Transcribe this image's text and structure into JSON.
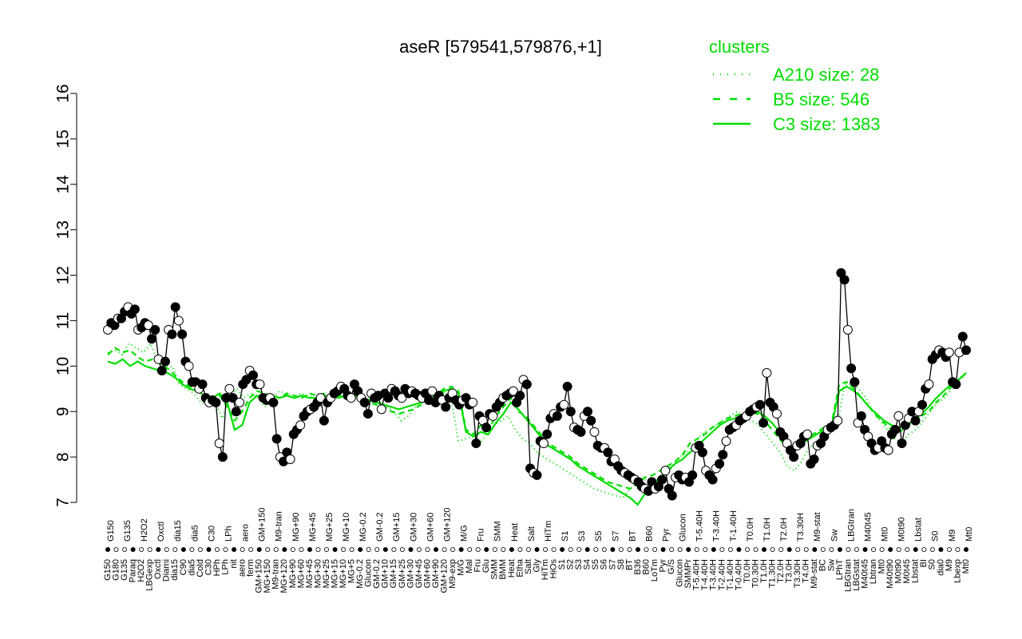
{
  "chart_data": {
    "type": "line",
    "title": "aseR [579541,579876,+1]",
    "xlabel": "",
    "ylabel": "",
    "ylim": [
      7,
      16
    ],
    "yticks": [
      7,
      8,
      9,
      10,
      11,
      12,
      13,
      14,
      15,
      16
    ],
    "grid": false,
    "legend_position": "top-right",
    "legend": {
      "title": "clusters",
      "color": "#00dd00",
      "entries": [
        {
          "label": "A210 size: 28",
          "style": "dotted"
        },
        {
          "label": "B5 size: 546",
          "style": "dashed"
        },
        {
          "label": "C3 size: 1383",
          "style": "solid"
        }
      ]
    },
    "x_tick_labels": [
      "G150",
      "G180",
      "G135",
      "Paraq",
      "H2O2",
      "LBGexp",
      "Oxctl",
      "Diami",
      "dia15",
      "C90",
      "dia5",
      "Cold",
      "C30",
      "HPh",
      "LPh",
      "nit",
      "aero",
      "ferm",
      "GM+150",
      "MG+150",
      "M9-tran",
      "MG+120",
      "MG+90",
      "MG+60",
      "MG+45",
      "MG+30",
      "MG+25",
      "MG+15",
      "MG+10",
      "MG+5",
      "MG-0.2",
      "Glucon",
      "GM-0.2",
      "GM+10",
      "GM+15",
      "GM+25",
      "GM+30",
      "GM+45",
      "GM+60",
      "GM+90",
      "GM+120",
      "M9-exp",
      "M/G",
      "Mal",
      "Fru",
      "Glu",
      "SMM",
      "BMM",
      "Heat",
      "Etha",
      "Salt",
      "Gly",
      "HiTm",
      "HiOs",
      "S1",
      "S2",
      "S3",
      "S4",
      "S5",
      "S6",
      "S7",
      "S8",
      "BT",
      "B36",
      "B60",
      "LoTm",
      "Pyr",
      "G/S",
      "Glucon",
      "SMMPr",
      "T-5.40H",
      "T-4.40H",
      "T-3.40H",
      "T-2.40H",
      "T-1.40H",
      "T-0.40H",
      "T0.0H",
      "T0.30H",
      "T1.0H",
      "T1.30H",
      "T2.0H",
      "T3.0H",
      "T3.30H",
      "T4.0H",
      "M9-stat",
      "BC",
      "Sw",
      "LPhT",
      "LBGtran",
      "LBGstat",
      "M40t45",
      "Lbtran",
      "Mt0",
      "M40t90",
      "M0t90",
      "M0t45",
      "Lbstat",
      "BI",
      "S0",
      "dia0",
      "M9",
      "Lbexp",
      "Mt0"
    ],
    "series": [
      {
        "name": "",
        "style": "points-line",
        "values": [
          10.8,
          10.95,
          10.9,
          11.05,
          11.05,
          11.2,
          11.3,
          11.15,
          11.25,
          10.8,
          10.85,
          10.95,
          10.9,
          10.6,
          10.8,
          10.15,
          9.9,
          10.1,
          10.8,
          10.7,
          11.3,
          11.0,
          10.7,
          10.1,
          10.0,
          9.65,
          9.65,
          9.5,
          9.6,
          9.3,
          9.2,
          9.25,
          9.2,
          8.3,
          8.0,
          9.3,
          9.5,
          9.3,
          9.0,
          9.2,
          9.6,
          9.7,
          9.9,
          9.8,
          9.6,
          9.6,
          9.3,
          9.25,
          9.3,
          9.2,
          8.4,
          8.0,
          7.9,
          8.1,
          7.95,
          8.5,
          8.6,
          8.7,
          8.9,
          9.0,
          9.05,
          9.1,
          9.2,
          9.3,
          8.8,
          9.2,
          9.3,
          9.4,
          9.45,
          9.55,
          9.5,
          9.35,
          9.3,
          9.6,
          9.45,
          9.3,
          9.2,
          8.95,
          9.4,
          9.3,
          9.35,
          9.05,
          9.4,
          9.3,
          9.5,
          9.45,
          9.35,
          9.3,
          9.5,
          9.4,
          9.45,
          9.4,
          9.35,
          9.3,
          9.4,
          9.25,
          9.45,
          9.2,
          9.35,
          9.25,
          9.1,
          9.3,
          9.4,
          9.25,
          9.15,
          9.25,
          9.3,
          9.15,
          9.2,
          8.3,
          8.9,
          8.8,
          8.65,
          8.95,
          8.9,
          9.1,
          9.2,
          9.3,
          9.35,
          9.4,
          9.45,
          9.2,
          9.35,
          9.7,
          9.6,
          7.75,
          7.65,
          7.6,
          8.35,
          8.3,
          8.5,
          8.85,
          8.95,
          8.9,
          9.1,
          9.15,
          9.55,
          9.0,
          8.65,
          8.6,
          8.55,
          8.9,
          9.0,
          8.8,
          8.55,
          8.25,
          8.2,
          8.2,
          8.1,
          7.9,
          7.95,
          7.8,
          7.7,
          7.65,
          7.6,
          7.55,
          7.5,
          7.45,
          7.35,
          7.3,
          7.25,
          7.45,
          7.3,
          7.35,
          7.5,
          7.7,
          7.3,
          7.15,
          7.55,
          7.6,
          7.5,
          7.55,
          7.45,
          7.6,
          8.2,
          8.25,
          8.1,
          7.7,
          7.6,
          7.5,
          7.75,
          7.85,
          8.05,
          8.35,
          8.6,
          8.65,
          8.7,
          8.8,
          8.85,
          8.9,
          9.0,
          9.05,
          9.1,
          9.15,
          8.75,
          9.85,
          9.2,
          9.1,
          8.95,
          8.55,
          8.45,
          8.3,
          8.15,
          8.0,
          8.25,
          8.3,
          8.45,
          8.5,
          7.85,
          7.95,
          8.25,
          8.3,
          8.45,
          8.6,
          8.65,
          8.7,
          8.8,
          12.05,
          11.9,
          10.8,
          9.95,
          9.65,
          8.75,
          8.9,
          8.6,
          8.45,
          8.3,
          8.15,
          8.2,
          8.35,
          8.2,
          8.15,
          8.5,
          8.6,
          8.9,
          8.3,
          8.7,
          8.85,
          9.0,
          8.8,
          9.0,
          9.15,
          9.5,
          9.6,
          10.15,
          10.25,
          10.35,
          10.3,
          10.2,
          10.3,
          9.65,
          9.6,
          10.3,
          10.65,
          10.35
        ]
      },
      {
        "name": "A210 size: 28",
        "style": "dotted",
        "values": [
          10.3,
          10.35,
          10.25,
          10.5,
          10.4,
          10.3,
          10.5,
          10.1,
          9.9,
          10.0,
          9.6,
          9.5,
          9.4,
          9.2,
          9.15,
          9.2,
          8.85,
          9.3,
          9.5,
          9.3,
          9.4,
          9.3,
          9.1,
          9.3,
          9.45,
          9.4,
          9.3,
          9.4,
          9.35,
          9.3,
          9.4,
          9.35,
          9.3,
          9.45,
          9.4,
          9.35,
          9.3,
          9.25,
          9.2,
          9.1,
          9.0,
          8.8,
          8.9,
          9.1,
          9.2,
          9.3,
          9.35,
          9.4,
          9.3,
          8.35,
          8.4,
          8.45,
          8.3,
          8.5,
          8.7,
          8.8,
          8.9,
          8.6,
          8.4,
          8.3,
          8.1,
          8.0,
          7.9,
          7.8,
          7.7,
          7.6,
          7.5,
          7.4,
          7.3,
          7.25,
          7.2,
          7.15,
          7.1,
          7.3,
          7.4,
          7.5,
          7.45,
          7.5,
          7.55,
          7.8,
          8.0,
          8.1,
          8.3,
          8.5,
          8.6,
          8.7,
          8.8,
          8.9,
          9.0,
          8.85,
          8.8,
          8.7,
          8.5,
          8.3,
          8.1,
          7.8,
          7.7,
          7.9,
          8.2,
          8.3,
          8.45,
          8.6,
          8.7,
          9.6,
          9.6,
          9.5,
          9.3,
          9.0,
          8.8,
          8.6,
          8.4,
          8.3,
          8.5,
          8.6,
          8.8,
          9.0,
          9.2,
          9.3,
          9.5,
          9.7,
          9.8
        ]
      },
      {
        "name": "B5 size: 546",
        "style": "dashed",
        "values": [
          10.25,
          10.4,
          10.3,
          10.35,
          10.2,
          10.1,
          10.15,
          10.05,
          9.95,
          9.8,
          9.65,
          9.55,
          9.45,
          9.3,
          9.25,
          9.35,
          9.1,
          8.8,
          9.0,
          9.3,
          9.45,
          9.4,
          9.35,
          9.3,
          9.4,
          9.35,
          9.3,
          9.4,
          9.35,
          9.4,
          9.35,
          9.3,
          9.4,
          9.35,
          9.3,
          9.2,
          9.15,
          9.1,
          9.0,
          8.95,
          9.0,
          9.05,
          9.15,
          9.25,
          9.35,
          9.5,
          9.55,
          9.45,
          8.6,
          8.5,
          8.7,
          8.6,
          8.9,
          9.1,
          9.3,
          9.0,
          8.9,
          8.7,
          8.5,
          8.3,
          8.2,
          8.1,
          8.0,
          7.85,
          7.75,
          7.65,
          7.55,
          7.45,
          7.4,
          7.35,
          7.3,
          7.45,
          7.55,
          7.6,
          7.7,
          7.8,
          7.9,
          8.05,
          8.3,
          8.4,
          8.5,
          8.65,
          8.75,
          8.85,
          8.9,
          8.95,
          9.0,
          8.95,
          8.8,
          8.6,
          8.4,
          8.2,
          8.25,
          8.35,
          8.45,
          8.55,
          8.65,
          8.75,
          9.6,
          9.65,
          9.5,
          9.3,
          9.1,
          8.9,
          8.75,
          8.6,
          8.55,
          8.65,
          8.8,
          8.9,
          9.0,
          9.2,
          9.35,
          9.55,
          9.7,
          9.85
        ]
      },
      {
        "name": "C3 size: 1383",
        "style": "solid",
        "values": [
          10.1,
          10.05,
          10.15,
          10.0,
          10.1,
          10.0,
          9.95,
          9.9,
          9.85,
          9.75,
          9.6,
          9.5,
          9.45,
          9.35,
          9.3,
          9.4,
          9.2,
          8.6,
          8.7,
          9.2,
          9.35,
          9.3,
          9.35,
          9.3,
          9.35,
          9.3,
          9.35,
          9.3,
          9.3,
          9.35,
          9.3,
          9.35,
          9.3,
          9.35,
          9.3,
          9.25,
          9.2,
          9.15,
          9.1,
          9.05,
          9.1,
          9.15,
          9.2,
          9.25,
          9.3,
          9.45,
          9.5,
          9.4,
          8.55,
          8.45,
          8.55,
          8.5,
          8.75,
          8.95,
          9.2,
          9.05,
          8.85,
          8.65,
          8.45,
          8.25,
          8.15,
          8.05,
          7.95,
          7.8,
          7.7,
          7.6,
          7.5,
          7.4,
          7.3,
          7.2,
          7.1,
          6.95,
          7.2,
          7.4,
          7.55,
          7.7,
          7.85,
          7.95,
          8.1,
          8.25,
          8.4,
          8.55,
          8.7,
          8.8,
          8.85,
          8.9,
          8.95,
          9.0,
          8.9,
          8.75,
          8.55,
          8.35,
          8.2,
          8.3,
          8.4,
          8.5,
          8.6,
          8.7,
          9.45,
          9.55,
          9.45,
          9.3,
          9.1,
          8.95,
          8.8,
          8.7,
          8.65,
          8.7,
          8.8,
          8.95,
          9.1,
          9.3,
          9.45,
          9.6,
          9.7,
          9.85
        ]
      }
    ]
  }
}
